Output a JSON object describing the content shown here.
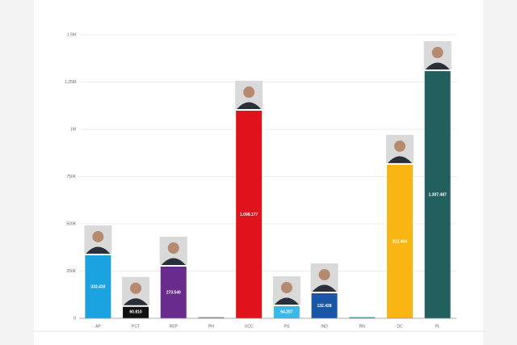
{
  "chart_data": {
    "type": "bar",
    "categories": [
      "AP",
      "PCT",
      "REP",
      "PH",
      "UCC",
      "PS",
      "IND",
      "RN",
      "DC",
      "PL"
    ],
    "values": [
      333430,
      60810,
      273540,
      1200,
      1098177,
      64207,
      132428,
      2500,
      812404,
      1307487
    ],
    "value_labels": [
      "333.430",
      "60.810",
      "273.540",
      null,
      "1.098.177",
      "64.207",
      "132.428",
      null,
      "812.404",
      "1.307.487"
    ],
    "colors": [
      "#1aa3e0",
      "#111111",
      "#6a2c8c",
      "#888888",
      "#e0121c",
      "#3ab8e8",
      "#1a56a8",
      "#2aa0a0",
      "#f8b514",
      "#226060"
    ],
    "ylim": [
      0,
      1500000
    ],
    "yticks": [
      0,
      {
        "value": 250000,
        "label": "250K"
      },
      {
        "value": 500000,
        "label": "500K"
      },
      {
        "value": 750000,
        "label": "750K"
      },
      {
        "value": 1000000,
        "label": "1M"
      },
      {
        "value": 1250000,
        "label": "1.25M"
      },
      {
        "value": 1500000,
        "label": "1.5M"
      }
    ],
    "grid": true
  }
}
